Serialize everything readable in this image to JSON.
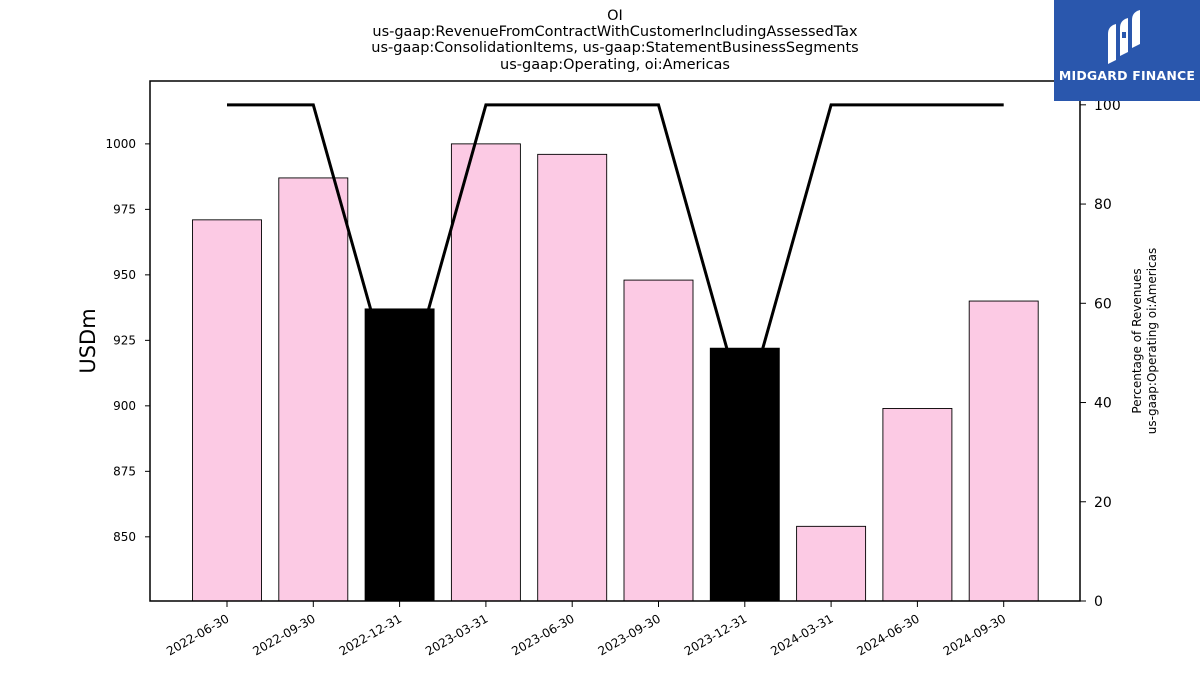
{
  "title_lines": [
    "OI",
    "us-gaap:RevenueFromContractWithCustomerIncludingAssessedTax",
    "us-gaap:ConsolidationItems, us-gaap:StatementBusinessSegments",
    "us-gaap:Operating, oi:Americas"
  ],
  "logo": {
    "text": "MIDGARD FINANCE",
    "color": "#2a57ad"
  },
  "chart_data": {
    "type": "bar",
    "categories": [
      "2022-06-30",
      "2022-09-30",
      "2022-12-31",
      "2023-03-31",
      "2023-06-30",
      "2023-09-30",
      "2023-12-31",
      "2024-03-31",
      "2024-06-30",
      "2024-09-30"
    ],
    "values": [
      971,
      987,
      937,
      1000,
      996,
      948,
      922,
      854,
      899,
      940
    ],
    "bar_colors": [
      "#fccae4",
      "#fccae4",
      "#000000",
      "#fccae4",
      "#fccae4",
      "#fccae4",
      "#000000",
      "#fccae4",
      "#fccae4",
      "#fccae4"
    ],
    "ylabel": "USDm",
    "ylim": [
      825.5,
      1024
    ],
    "yticks": [
      850,
      875,
      900,
      925,
      950,
      975,
      1000
    ],
    "secondary": {
      "type": "line",
      "values": [
        100,
        100,
        38,
        100,
        100,
        100,
        38,
        100,
        100,
        100
      ],
      "ylabel_lines": [
        "Percentage of Revenues",
        "us-gaap:Operating oi:Americas"
      ],
      "ylim": [
        0,
        104.8
      ],
      "yticks": [
        0,
        20,
        40,
        60,
        80,
        100
      ],
      "color": "#000000"
    },
    "grid": false
  }
}
